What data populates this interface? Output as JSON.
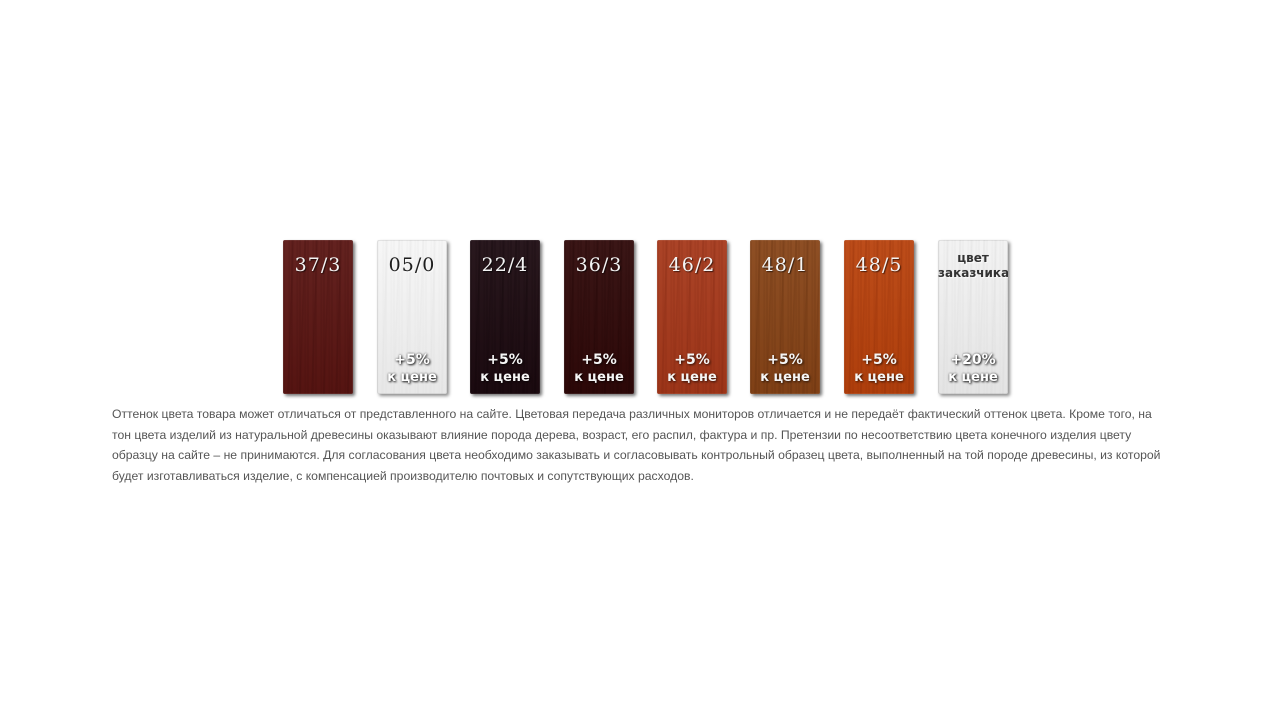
{
  "swatches": [
    {
      "id": "37-3",
      "code": "37/3",
      "price_pct": "",
      "price_text": "",
      "color": "#5a1512",
      "grain": "#3e0b0a",
      "light": false
    },
    {
      "id": "05-0",
      "code": "05/0",
      "price_pct": "+5%",
      "price_text": "к цене",
      "color": "#f6f6f6",
      "grain": "#dcdcdc",
      "light": true
    },
    {
      "id": "22-4",
      "code": "22/4",
      "price_pct": "+5%",
      "price_text": "к цене",
      "color": "#1c0a10",
      "grain": "#0e0307",
      "light": false
    },
    {
      "id": "36-3",
      "code": "36/3",
      "price_pct": "+5%",
      "price_text": "к цене",
      "color": "#2f0808",
      "grain": "#1d0303",
      "light": false
    },
    {
      "id": "46-2",
      "code": "46/2",
      "price_pct": "+5%",
      "price_text": "к цене",
      "color": "#a6381a",
      "grain": "#7e250f",
      "light": false
    },
    {
      "id": "48-1",
      "code": "48/1",
      "price_pct": "+5%",
      "price_text": "к цене",
      "color": "#874417",
      "grain": "#5e2b0b",
      "light": false
    },
    {
      "id": "48-5",
      "code": "48/5",
      "price_pct": "+5%",
      "price_text": "к цене",
      "color": "#b9420c",
      "grain": "#8e2c06",
      "light": false
    },
    {
      "id": "custom",
      "code": "цвет заказчика",
      "price_pct": "+20%",
      "price_text": "к цене",
      "color": "#f2f2f2",
      "grain": "#d6d6d6",
      "light": true
    }
  ],
  "note": "Оттенок цвета товара может отличаться от представленного на сайте. Цветовая передача различных мониторов отличается и не передаёт фактический оттенок цвета. Кроме того, на тон цвета изделий из натуральной древесины оказывают влияние порода дерева, возраст, его распил, фактура и пр. Претензии по несоответствию цвета конечного изделия цвету образцу на сайте – не принимаются. Для согласования цвета необходимо заказывать и согласовывать контрольный образец цвета, выполненный на той породе древесины, из которой будет изготавливаться изделие, с компенсацией производителю почтовых и сопутствующих расходов."
}
